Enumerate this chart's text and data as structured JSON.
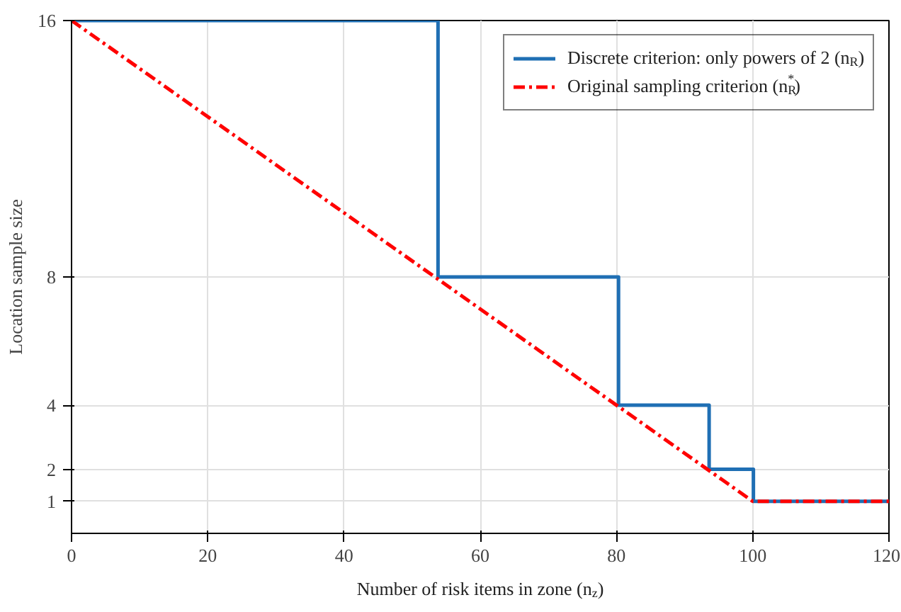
{
  "chart_data": {
    "type": "line",
    "xlabel": "Number of risk items in zone (n$_{z}$)",
    "ylabel": "Location sample size",
    "xlim": [
      0,
      120
    ],
    "ylim": [
      0,
      16
    ],
    "xticks": [
      0,
      20,
      40,
      60,
      80,
      100,
      120
    ],
    "yticks": [
      1,
      2,
      4,
      8,
      16
    ],
    "grid": true,
    "legend": "top right",
    "series": [
      {
        "name": "Discrete criterion: only powers of 2 (n$_{R}$)",
        "type": "step",
        "color": "#1f6fb4",
        "line_style": "solid",
        "x": [
          0,
          53.8,
          80.3,
          93.6,
          100.1,
          120
        ],
        "values": [
          16,
          8,
          4,
          2,
          1,
          1
        ]
      },
      {
        "name": "Original sampling criterion (n$_{R}$$^{*}$)",
        "type": "line",
        "color": "#ff0000",
        "line_style": "dashdot",
        "x": [
          0,
          100,
          120
        ],
        "values": [
          16,
          1,
          1
        ]
      }
    ]
  }
}
